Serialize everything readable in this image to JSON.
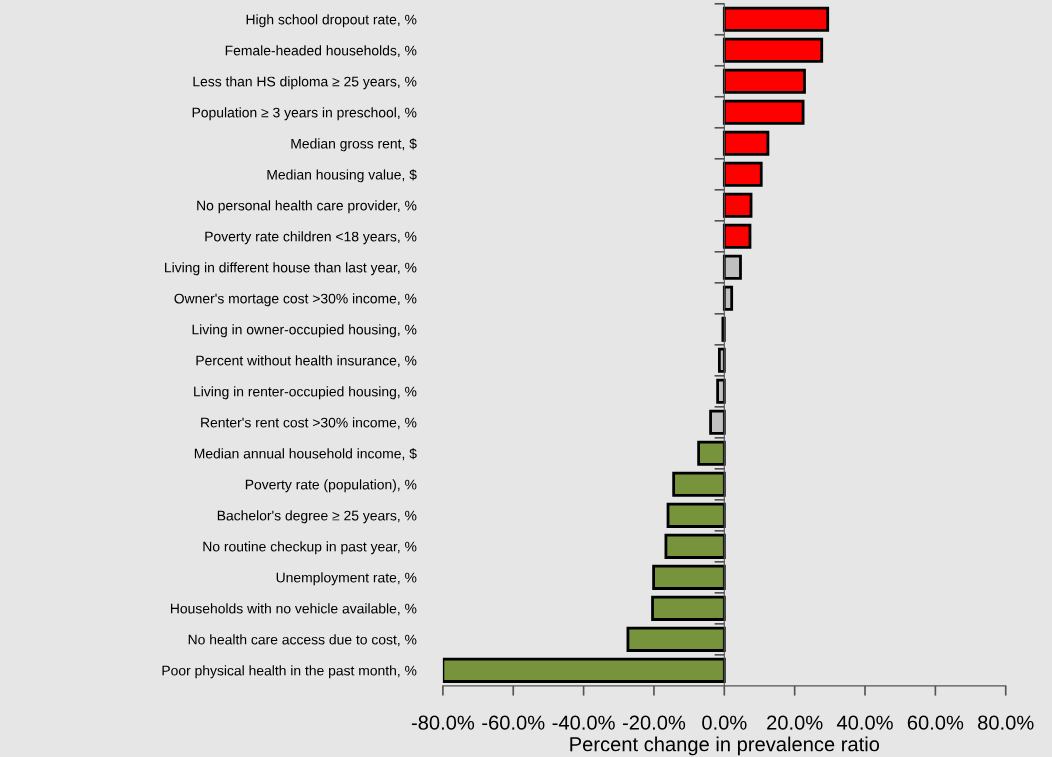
{
  "chart_data": {
    "type": "bar",
    "orientation": "horizontal",
    "xlabel": "Percent change in prevalence ratio",
    "categories": [
      "High school dropout rate, %",
      "Female-headed households, %",
      "Less than HS diploma ≥ 25 years, %",
      "Population ≥ 3 years in preschool, %",
      "Median gross rent, $",
      "Median housing value, $",
      "No personal health care provider, %",
      "Poverty rate children <18 years, %",
      "Living in different house than last year, %",
      "Owner's mortage cost >30% income, %",
      "Living in owner-occupied housing, %",
      "Percent without health insurance, %",
      "Living in renter-occupied housing, %",
      "Renter's rent cost >30% income, %",
      "Median annual household income, $",
      "Poverty rate (population), %",
      "Bachelor's degree ≥ 25 years, %",
      "No routine checkup in past year, %",
      "Unemployment rate, %",
      "Households with no vehicle available, %",
      "No health care access due to cost, %",
      "Poor physical health in the past month, %"
    ],
    "values": [
      29.4,
      27.7,
      22.8,
      22.4,
      12.4,
      10.5,
      7.6,
      7.3,
      4.6,
      2.1,
      -0.4,
      -1.4,
      -1.9,
      -3.9,
      -7.3,
      -14.4,
      -16.0,
      -16.6,
      -20.1,
      -20.4,
      -27.4,
      -80.0
    ],
    "colors": [
      "#ff0000",
      "#ff0000",
      "#ff0000",
      "#ff0000",
      "#ff0000",
      "#ff0000",
      "#ff0000",
      "#ff0000",
      "#c0c0c0",
      "#c0c0c0",
      "#c0c0c0",
      "#c0c0c0",
      "#c0c0c0",
      "#c0c0c0",
      "#77933c",
      "#77933c",
      "#77933c",
      "#77933c",
      "#77933c",
      "#77933c",
      "#77933c",
      "#77933c"
    ],
    "xlim": [
      -80,
      80
    ],
    "xticks": [
      {
        "value": -80,
        "label": "-80.0%"
      },
      {
        "value": -60,
        "label": "-60.0%"
      },
      {
        "value": -40,
        "label": "-40.0%"
      },
      {
        "value": -20,
        "label": "-20.0%"
      },
      {
        "value": 0,
        "label": "0.0%"
      },
      {
        "value": 20,
        "label": "20.0%"
      },
      {
        "value": 40,
        "label": "40.0%"
      },
      {
        "value": 60,
        "label": "60.0%"
      },
      {
        "value": 80,
        "label": "80.0%"
      }
    ],
    "legend": false
  }
}
